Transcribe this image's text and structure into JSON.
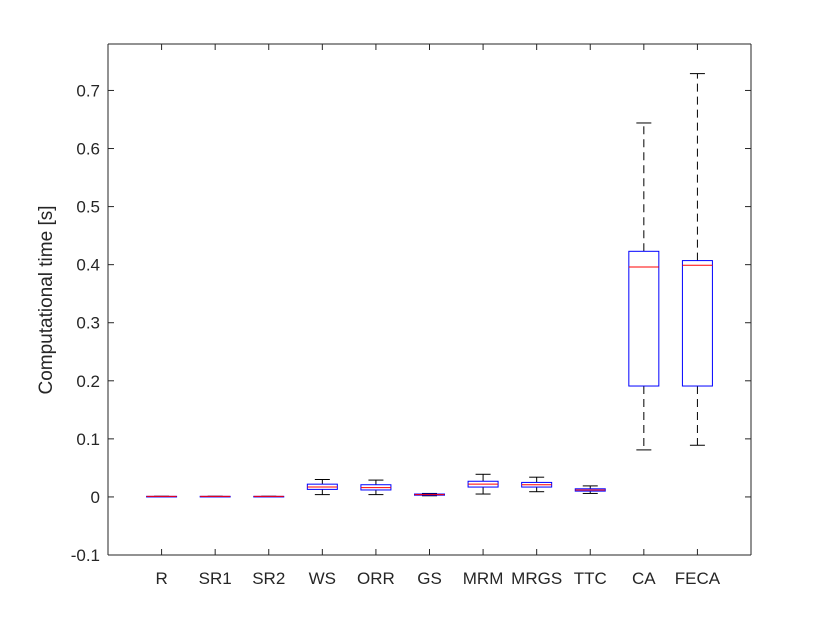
{
  "chart_data": {
    "type": "boxplot",
    "ylabel": "Computational time [s]",
    "xlabel": "",
    "title": "",
    "ylim": [
      -0.1,
      0.78
    ],
    "yticks": [
      -0.1,
      0,
      0.1,
      0.2,
      0.3,
      0.4,
      0.5,
      0.6,
      0.7
    ],
    "ytick_labels": [
      "-0.1",
      "0",
      "0.1",
      "0.2",
      "0.3",
      "0.4",
      "0.5",
      "0.6",
      "0.7"
    ],
    "grid": false,
    "categories": [
      "R",
      "SR1",
      "SR2",
      "WS",
      "ORR",
      "GS",
      "MRM",
      "MRGS",
      "TTC",
      "CA",
      "FECA"
    ],
    "boxes": [
      {
        "label": "R",
        "min": 0.001,
        "q1": 0.001,
        "median": 0.001,
        "q3": 0.001,
        "max": 0.001
      },
      {
        "label": "SR1",
        "min": 0.001,
        "q1": 0.001,
        "median": 0.001,
        "q3": 0.001,
        "max": 0.001
      },
      {
        "label": "SR2",
        "min": 0.001,
        "q1": 0.001,
        "median": 0.001,
        "q3": 0.001,
        "max": 0.001
      },
      {
        "label": "WS",
        "min": 0.004,
        "q1": 0.013,
        "median": 0.017,
        "q3": 0.022,
        "max": 0.03
      },
      {
        "label": "ORR",
        "min": 0.004,
        "q1": 0.012,
        "median": 0.016,
        "q3": 0.021,
        "max": 0.029
      },
      {
        "label": "GS",
        "min": 0.002,
        "q1": 0.003,
        "median": 0.004,
        "q3": 0.005,
        "max": 0.006
      },
      {
        "label": "MRM",
        "min": 0.005,
        "q1": 0.017,
        "median": 0.022,
        "q3": 0.027,
        "max": 0.039
      },
      {
        "label": "MRGS",
        "min": 0.009,
        "q1": 0.017,
        "median": 0.021,
        "q3": 0.025,
        "max": 0.034
      },
      {
        "label": "TTC",
        "min": 0.006,
        "q1": 0.01,
        "median": 0.012,
        "q3": 0.014,
        "max": 0.019
      },
      {
        "label": "CA",
        "min": 0.081,
        "q1": 0.191,
        "median": 0.396,
        "q3": 0.423,
        "max": 0.644
      },
      {
        "label": "FECA",
        "min": 0.089,
        "q1": 0.191,
        "median": 0.399,
        "q3": 0.407,
        "max": 0.729
      }
    ],
    "colors": {
      "box": "#0000ff",
      "median": "#ff0000",
      "whisker": "#000000",
      "axis": "#262626"
    }
  }
}
